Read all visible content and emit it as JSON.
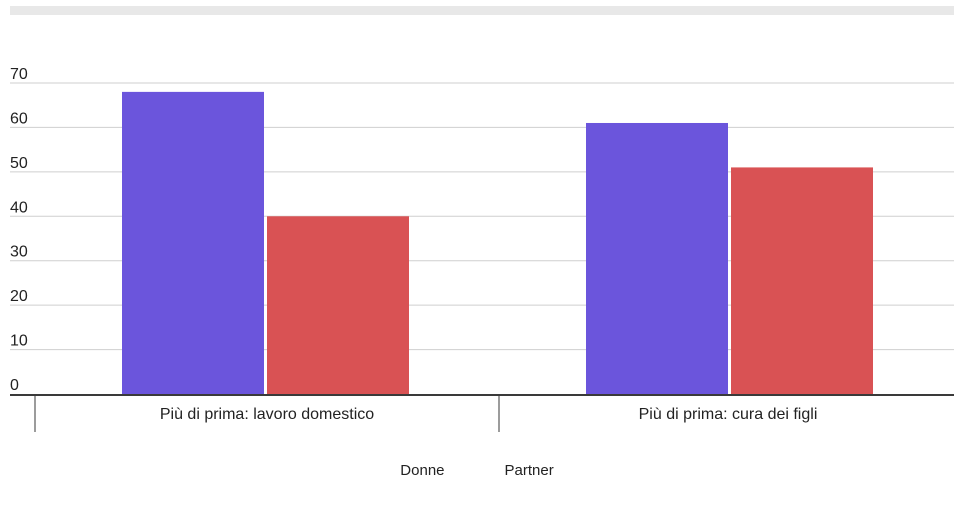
{
  "colors": {
    "series_1": "#6b55dc",
    "series_2": "#d95254",
    "grid": "#cfcfcf",
    "axis": "#3a3a3a"
  },
  "chart_data": {
    "type": "bar",
    "categories": [
      "Più di prima: lavoro domestico",
      "Più di prima: cura dei figli"
    ],
    "series": [
      {
        "name": "Donne",
        "values": [
          68,
          61
        ]
      },
      {
        "name": "Partner",
        "values": [
          40,
          51
        ]
      }
    ],
    "yticks": [
      "0",
      "10",
      "20",
      "30",
      "40",
      "50",
      "60",
      "70"
    ],
    "ylim": [
      0,
      70
    ],
    "grid": true,
    "legend_position": "bottom"
  }
}
